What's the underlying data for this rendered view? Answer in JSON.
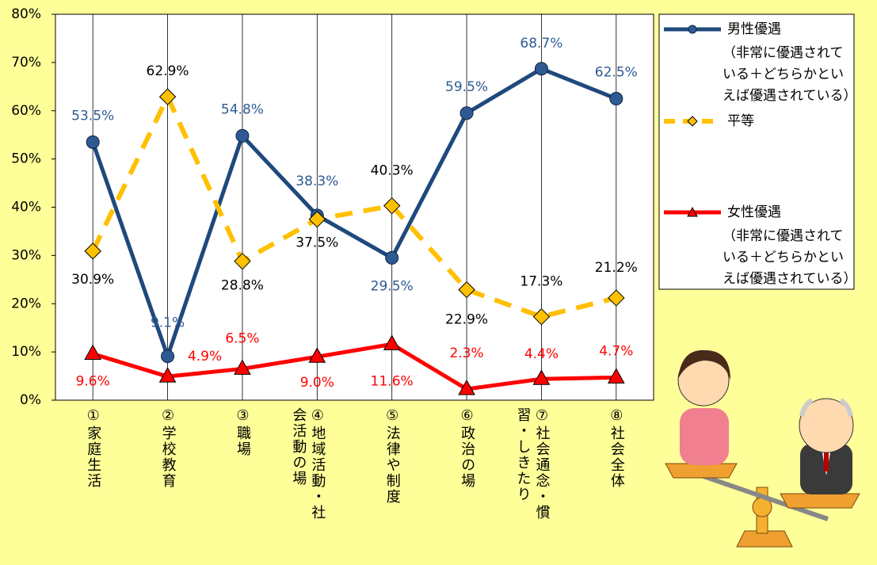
{
  "chart_data": {
    "type": "line",
    "categories": [
      "①家庭生活",
      "②学校教育",
      "③職場",
      "④地域活動・社会活動の場",
      "⑤法律や制度",
      "⑥政治の場",
      "⑦社会通念・慣習・しきたり",
      "⑧社会全体"
    ],
    "series": [
      {
        "name": "男性優遇",
        "description": "（非常に優遇されている＋どちらかといえば優遇されている）",
        "color": "#1f497d",
        "label_color": "#2e5a94",
        "marker": "circle",
        "dashed": false,
        "values": [
          53.5,
          9.1,
          54.8,
          38.3,
          29.5,
          59.5,
          68.7,
          62.5
        ],
        "value_labels": [
          "53.5%",
          "9.1%",
          "54.8%",
          "38.3%",
          "29.5%",
          "59.5%",
          "68.7%",
          "62.5%"
        ]
      },
      {
        "name": "平等",
        "color": "#ffc000",
        "label_color": "#000000",
        "marker": "diamond",
        "dashed": true,
        "values": [
          30.9,
          62.9,
          28.8,
          37.5,
          40.3,
          22.9,
          17.3,
          21.2
        ],
        "value_labels": [
          "30.9%",
          "62.9%",
          "28.8%",
          "37.5%",
          "40.3%",
          "22.9%",
          "17.3%",
          "21.2%"
        ]
      },
      {
        "name": "女性優遇",
        "description": "（非常に優遇されている＋どちらかといえば優遇されている）",
        "color": "#ff0000",
        "label_color": "#ff0000",
        "marker": "triangle",
        "dashed": false,
        "values": [
          9.6,
          4.9,
          6.5,
          9,
          11.6,
          2.3,
          4.4,
          4.7
        ],
        "value_labels": [
          "9.6%",
          "4.9%",
          "6.5%",
          "9.0%",
          "11.6%",
          "2.3%",
          "4.4%",
          "4.7%"
        ]
      }
    ],
    "ylim": [
      0,
      80
    ],
    "yticks": [
      {
        "value": 0,
        "label": "0%"
      },
      {
        "value": 10,
        "label": "10%"
      },
      {
        "value": 20,
        "label": "20%"
      },
      {
        "value": 30,
        "label": "30%"
      },
      {
        "value": 40,
        "label": "40%"
      },
      {
        "value": 50,
        "label": "50%"
      },
      {
        "value": 60,
        "label": "60%"
      },
      {
        "value": 70,
        "label": "70%"
      },
      {
        "value": 80,
        "label": "80%"
      }
    ],
    "legend": "right"
  }
}
